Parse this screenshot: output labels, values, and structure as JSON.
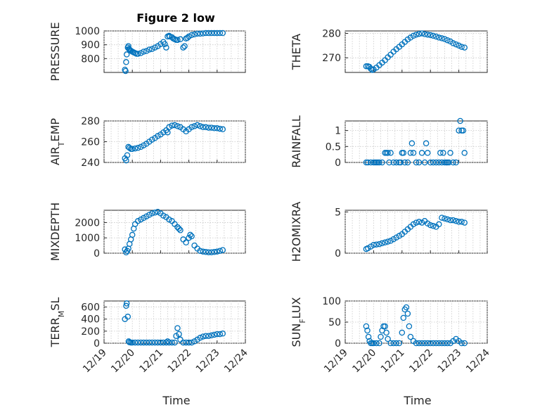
{
  "figure": {
    "title": "Figure 2 low",
    "xlabel": "Time",
    "xticklabels": [
      "12/19",
      "12/20",
      "12/21",
      "12/22",
      "12/23",
      "12/24"
    ],
    "marker_color": "#0072bd"
  },
  "chart_data": [
    {
      "type": "scatter",
      "title": "Figure 2 low",
      "ylabel": "PRESSURE",
      "xlim": [
        0,
        5
      ],
      "ylim": [
        700,
        1000
      ],
      "yticks": [
        800,
        900,
        1000
      ],
      "x": [
        0.74,
        0.76,
        0.78,
        0.8,
        0.84,
        0.86,
        0.88,
        0.9,
        0.93,
        0.96,
        1.0,
        1.05,
        1.1,
        1.15,
        1.2,
        1.3,
        1.4,
        1.5,
        1.6,
        1.7,
        1.8,
        1.9,
        2.0,
        2.1,
        2.15,
        2.2,
        2.25,
        2.3,
        2.32,
        2.4,
        2.45,
        2.5,
        2.55,
        2.6,
        2.7,
        2.8,
        2.85,
        2.9,
        2.95,
        3.0,
        3.1,
        3.2,
        3.3,
        3.4,
        3.5,
        3.6,
        3.7,
        3.8,
        3.9,
        4.0,
        4.1,
        4.2
      ],
      "y": [
        720,
        710,
        775,
        830,
        880,
        890,
        870,
        865,
        860,
        855,
        850,
        845,
        840,
        835,
        835,
        840,
        850,
        855,
        865,
        870,
        880,
        890,
        905,
        920,
        905,
        880,
        960,
        965,
        960,
        955,
        945,
        940,
        935,
        935,
        940,
        880,
        890,
        945,
        950,
        960,
        970,
        975,
        980,
        980,
        982,
        985,
        985,
        985,
        985,
        985,
        985,
        985
      ]
    },
    {
      "type": "scatter",
      "ylabel": "THETA",
      "xlim": [
        0,
        5
      ],
      "ylim": [
        264,
        281
      ],
      "yticks": [
        270,
        280
      ],
      "x": [
        0.74,
        0.8,
        0.85,
        0.9,
        0.95,
        1.0,
        1.1,
        1.2,
        1.3,
        1.4,
        1.5,
        1.6,
        1.7,
        1.8,
        1.9,
        2.0,
        2.1,
        2.2,
        2.3,
        2.4,
        2.5,
        2.6,
        2.7,
        2.8,
        2.9,
        3.0,
        3.1,
        3.2,
        3.3,
        3.4,
        3.5,
        3.6,
        3.7,
        3.8,
        3.9,
        4.0,
        4.1,
        4.2
      ],
      "y": [
        266.5,
        266.5,
        266.3,
        265.5,
        265,
        265.2,
        266,
        267,
        268,
        269,
        270.2,
        271.3,
        272.5,
        273.5,
        274.5,
        275.5,
        276.5,
        277.5,
        278.3,
        279,
        279.5,
        279.8,
        280,
        279.7,
        279.5,
        279.3,
        279,
        278.7,
        278.3,
        278,
        277.7,
        277.2,
        276.7,
        276,
        275.5,
        275,
        274.5,
        274.2
      ]
    },
    {
      "type": "scatter",
      "ylabel": "AIR_TEMP",
      "xlim": [
        0,
        5
      ],
      "ylim": [
        240,
        280
      ],
      "yticks": [
        240,
        260,
        280
      ],
      "x": [
        0.74,
        0.78,
        0.82,
        0.86,
        0.9,
        0.95,
        1.0,
        1.1,
        1.2,
        1.3,
        1.4,
        1.5,
        1.6,
        1.7,
        1.8,
        1.9,
        2.0,
        2.1,
        2.2,
        2.25,
        2.3,
        2.4,
        2.5,
        2.6,
        2.7,
        2.8,
        2.9,
        3.0,
        3.1,
        3.2,
        3.3,
        3.4,
        3.5,
        3.6,
        3.7,
        3.8,
        3.9,
        4.0,
        4.1,
        4.2
      ],
      "y": [
        244,
        242,
        247,
        255,
        254,
        253,
        253,
        253.5,
        254,
        255,
        256.5,
        258,
        260,
        262,
        263.5,
        265.5,
        267,
        269,
        271,
        269,
        274,
        275.5,
        276,
        275,
        274,
        272,
        270,
        272,
        274,
        275,
        276,
        275,
        274,
        274,
        273.5,
        273.5,
        273,
        273,
        272.5,
        272
      ]
    },
    {
      "type": "scatter",
      "ylabel": "RAINFALL",
      "xlim": [
        0,
        5
      ],
      "ylim": [
        0,
        1.3
      ],
      "yticks": [
        0,
        0.5,
        1
      ],
      "x": [
        0.74,
        0.8,
        0.9,
        1.0,
        1.05,
        1.1,
        1.15,
        1.2,
        1.3,
        1.4,
        1.45,
        1.5,
        1.55,
        1.6,
        1.7,
        1.8,
        1.9,
        1.95,
        2.0,
        2.05,
        2.1,
        2.2,
        2.3,
        2.35,
        2.4,
        2.5,
        2.6,
        2.7,
        2.8,
        2.85,
        2.9,
        3.0,
        3.1,
        3.2,
        3.3,
        3.35,
        3.4,
        3.45,
        3.5,
        3.55,
        3.6,
        3.65,
        3.7,
        3.8,
        3.9,
        4.0,
        4.05,
        4.1,
        4.15,
        4.2
      ],
      "y": [
        0,
        0,
        0,
        0,
        0,
        0,
        0,
        0,
        0,
        0.3,
        0.3,
        0.3,
        0,
        0.3,
        0,
        0,
        0,
        0,
        0.3,
        0.3,
        0,
        0,
        0.3,
        0.6,
        0.3,
        0,
        0,
        0.3,
        0,
        0.6,
        0.3,
        0,
        0,
        0,
        0,
        0.3,
        0,
        0.3,
        0,
        0,
        0,
        0,
        0.3,
        0,
        0,
        1.0,
        1.3,
        1.0,
        1.0,
        0.3
      ]
    },
    {
      "type": "scatter",
      "ylabel": "MIXDEPTH",
      "xlim": [
        0,
        5
      ],
      "ylim": [
        0,
        2800
      ],
      "yticks": [
        0,
        1000,
        2000
      ],
      "x": [
        0.74,
        0.78,
        0.82,
        0.86,
        0.9,
        0.95,
        1.0,
        1.05,
        1.1,
        1.2,
        1.3,
        1.4,
        1.5,
        1.6,
        1.7,
        1.8,
        1.9,
        2.0,
        2.1,
        2.2,
        2.3,
        2.4,
        2.5,
        2.6,
        2.65,
        2.7,
        2.8,
        2.9,
        3.0,
        3.05,
        3.1,
        3.2,
        3.3,
        3.4,
        3.5,
        3.6,
        3.7,
        3.8,
        3.9,
        4.0,
        4.1,
        4.2
      ],
      "y": [
        250,
        50,
        150,
        300,
        600,
        900,
        1200,
        1600,
        1900,
        2100,
        2200,
        2300,
        2400,
        2500,
        2600,
        2650,
        2700,
        2600,
        2450,
        2350,
        2200,
        2100,
        1900,
        1700,
        1600,
        1500,
        900,
        700,
        1000,
        1200,
        1100,
        500,
        300,
        150,
        100,
        80,
        60,
        60,
        80,
        100,
        150,
        200
      ]
    },
    {
      "type": "scatter",
      "ylabel": "H2OMIXRA",
      "xlim": [
        0,
        5
      ],
      "ylim": [
        0,
        5.2
      ],
      "yticks": [
        0,
        5
      ],
      "x": [
        0.74,
        0.8,
        0.9,
        1.0,
        1.1,
        1.2,
        1.3,
        1.4,
        1.5,
        1.6,
        1.7,
        1.8,
        1.9,
        2.0,
        2.1,
        2.2,
        2.3,
        2.4,
        2.5,
        2.6,
        2.7,
        2.8,
        2.9,
        3.0,
        3.1,
        3.2,
        3.3,
        3.4,
        3.5,
        3.6,
        3.7,
        3.8,
        3.9,
        4.0,
        4.1,
        4.2
      ],
      "y": [
        0.5,
        0.6,
        0.8,
        1.0,
        1.05,
        1.1,
        1.2,
        1.3,
        1.4,
        1.5,
        1.7,
        1.9,
        2.1,
        2.3,
        2.6,
        2.9,
        3.2,
        3.5,
        3.7,
        3.8,
        3.7,
        3.9,
        3.6,
        3.4,
        3.3,
        3.2,
        3.5,
        4.3,
        4.2,
        4.1,
        4.0,
        4.0,
        3.9,
        3.8,
        3.8,
        3.7
      ]
    },
    {
      "type": "scatter",
      "ylabel": "TERR_MSL",
      "xlim": [
        0,
        5
      ],
      "ylim": [
        0,
        700
      ],
      "yticks": [
        0,
        200,
        400,
        600
      ],
      "x": [
        0.74,
        0.78,
        0.8,
        0.84,
        0.87,
        0.9,
        0.95,
        1.0,
        1.1,
        1.2,
        1.3,
        1.4,
        1.5,
        1.6,
        1.7,
        1.8,
        1.9,
        2.0,
        2.1,
        2.2,
        2.25,
        2.3,
        2.4,
        2.5,
        2.55,
        2.6,
        2.65,
        2.7,
        2.8,
        2.9,
        3.0,
        3.1,
        3.2,
        3.3,
        3.4,
        3.5,
        3.6,
        3.7,
        3.8,
        3.9,
        4.0,
        4.1,
        4.2
      ],
      "y": [
        400,
        620,
        660,
        440,
        30,
        15,
        10,
        10,
        10,
        10,
        10,
        10,
        10,
        10,
        10,
        10,
        10,
        10,
        10,
        10,
        30,
        10,
        10,
        10,
        120,
        250,
        150,
        60,
        10,
        10,
        10,
        10,
        30,
        60,
        90,
        110,
        120,
        120,
        130,
        140,
        150,
        150,
        160
      ]
    },
    {
      "type": "scatter",
      "ylabel": "SUN_FLUX",
      "xlim": [
        0,
        5
      ],
      "ylim": [
        0,
        100
      ],
      "yticks": [
        0,
        50,
        100
      ],
      "x": [
        0.74,
        0.78,
        0.82,
        0.86,
        0.9,
        0.95,
        1.0,
        1.1,
        1.2,
        1.25,
        1.3,
        1.35,
        1.4,
        1.45,
        1.5,
        1.6,
        1.7,
        1.8,
        1.9,
        2.0,
        2.05,
        2.1,
        2.15,
        2.2,
        2.25,
        2.3,
        2.4,
        2.5,
        2.6,
        2.7,
        2.8,
        2.9,
        3.0,
        3.1,
        3.2,
        3.3,
        3.4,
        3.5,
        3.6,
        3.7,
        3.8,
        3.9,
        4.0,
        4.1,
        4.2
      ],
      "y": [
        40,
        30,
        15,
        5,
        0,
        0,
        0,
        0,
        0,
        15,
        30,
        40,
        40,
        25,
        10,
        0,
        0,
        0,
        0,
        25,
        60,
        80,
        85,
        70,
        40,
        15,
        5,
        0,
        0,
        0,
        0,
        0,
        0,
        0,
        0,
        0,
        0,
        0,
        0,
        0,
        5,
        10,
        5,
        0,
        0
      ]
    }
  ]
}
